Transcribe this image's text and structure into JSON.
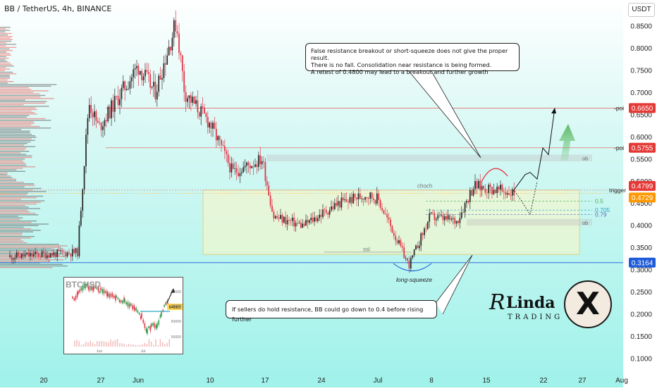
{
  "header": {
    "symbol_title": "BB / TetherUS, 4h, BINANCE",
    "currency_button": "USDT"
  },
  "annotations": {
    "note_top": [
      "False resistance breakout or short-squeeze does not give the proper result.",
      "There is no fall. Consolidation near resistance is being formed.",
      "A retest of 0.4800 may lead to a breakout and further growth"
    ],
    "note_bottom": "If sellers do hold resistance, BB could go down to 0.4 before rising further",
    "poi_label": "-poi",
    "trigger_label": "trigger",
    "choch_label": "choch",
    "ssl_label": "ssl",
    "ob_label": "ob",
    "long_squeeze_label": "long-squeeze",
    "fib_labels": [
      "0.5",
      "0.705",
      "0.79"
    ]
  },
  "price_tags": [
    {
      "value": "0.6650",
      "color": "#e53935"
    },
    {
      "value": "0.5755",
      "color": "#e53935"
    },
    {
      "value": "0.4799",
      "color": "#e53935"
    },
    {
      "value": "0.4729",
      "color": "#ff9800"
    },
    {
      "value": "0.3164",
      "color": "#1e5bd8"
    }
  ],
  "inset": {
    "title": "BTCUSD",
    "price_tag": "64883",
    "y_ticks": [
      "70000",
      "65000",
      "60000",
      "55000"
    ],
    "x_ticks": [
      "Jun",
      "Jul"
    ]
  },
  "logo": {
    "brand_line1": "Linda",
    "brand_line2": "TRADING",
    "badge_letter": "X"
  },
  "colors": {
    "background_top": "#ffffff",
    "background_bottom": "#9ff2ea",
    "bull_candle": "#2d2d2d",
    "bear_candle": "#e0394a",
    "poi_line": "#e57373",
    "ssl_line": "#1e5bd8",
    "zone_fill": "#fff6c4",
    "arrow_green": "#4caf50"
  },
  "chart_data": {
    "type": "candlestick",
    "title": "BB / TetherUS, 4h, BINANCE",
    "y_axis": {
      "unit": "USDT",
      "range": [
        0.05,
        0.87
      ],
      "ticks": [
        0.85,
        0.8,
        0.75,
        0.7,
        0.65,
        0.6,
        0.55,
        0.5,
        0.45,
        0.4,
        0.35,
        0.3,
        0.25,
        0.2,
        0.15,
        0.1
      ]
    },
    "x_axis": {
      "ticks": [
        "20",
        "27",
        "Jun",
        "10",
        "17",
        "24",
        "Jul",
        "8",
        "15",
        "22",
        "27",
        "Aug"
      ]
    },
    "levels": [
      {
        "name": "poi",
        "price": 0.665
      },
      {
        "name": "poi",
        "price": 0.5755
      },
      {
        "name": "trigger",
        "price": 0.4799
      },
      {
        "name": "current",
        "price": 0.4729
      },
      {
        "name": "ssl",
        "price": 0.3164
      },
      {
        "name": "fib 0.5",
        "price": 0.455
      },
      {
        "name": "fib 0.705",
        "price": 0.435
      },
      {
        "name": "fib 0.79",
        "price": 0.425
      }
    ],
    "price_path": [
      {
        "x": "20",
        "price": 0.33
      },
      {
        "x": "26",
        "price": 0.34
      },
      {
        "x": "27",
        "price": 0.68
      },
      {
        "x": "29",
        "price": 0.62
      },
      {
        "x": "Jun",
        "price": 0.76
      },
      {
        "x": "4",
        "price": 0.7
      },
      {
        "x": "6",
        "price": 0.86
      },
      {
        "x": "8",
        "price": 0.7
      },
      {
        "x": "10",
        "price": 0.63
      },
      {
        "x": "13",
        "price": 0.52
      },
      {
        "x": "17",
        "price": 0.55
      },
      {
        "x": "19",
        "price": 0.42
      },
      {
        "x": "22",
        "price": 0.4
      },
      {
        "x": "24",
        "price": 0.45
      },
      {
        "x": "27",
        "price": 0.47
      },
      {
        "x": "Jul",
        "price": 0.46
      },
      {
        "x": "5",
        "price": 0.31
      },
      {
        "x": "8",
        "price": 0.42
      },
      {
        "x": "12",
        "price": 0.41
      },
      {
        "x": "14",
        "price": 0.49
      },
      {
        "x": "17",
        "price": 0.4729
      }
    ]
  }
}
